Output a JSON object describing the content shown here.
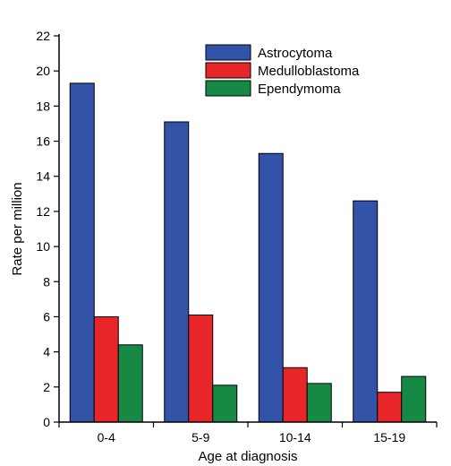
{
  "chart_data": {
    "type": "bar",
    "categories": [
      "0-4",
      "5-9",
      "10-14",
      "15-19"
    ],
    "series": [
      {
        "name": "Astrocytoma",
        "color": "#3353a8",
        "values": [
          19.3,
          17.1,
          15.3,
          12.6
        ]
      },
      {
        "name": "Medulloblastoma",
        "color": "#e8262a",
        "values": [
          6.0,
          6.1,
          3.1,
          1.7
        ]
      },
      {
        "name": "Ependymoma",
        "color": "#168a45",
        "values": [
          4.4,
          2.1,
          2.2,
          2.6
        ]
      }
    ],
    "xlabel": "Age at diagnosis",
    "ylabel": "Rate per million",
    "ylim": [
      0,
      22
    ],
    "yticks": [
      0,
      2,
      4,
      6,
      8,
      10,
      12,
      14,
      16,
      18,
      20,
      22
    ],
    "grid": false,
    "legend_position": "top-right"
  }
}
